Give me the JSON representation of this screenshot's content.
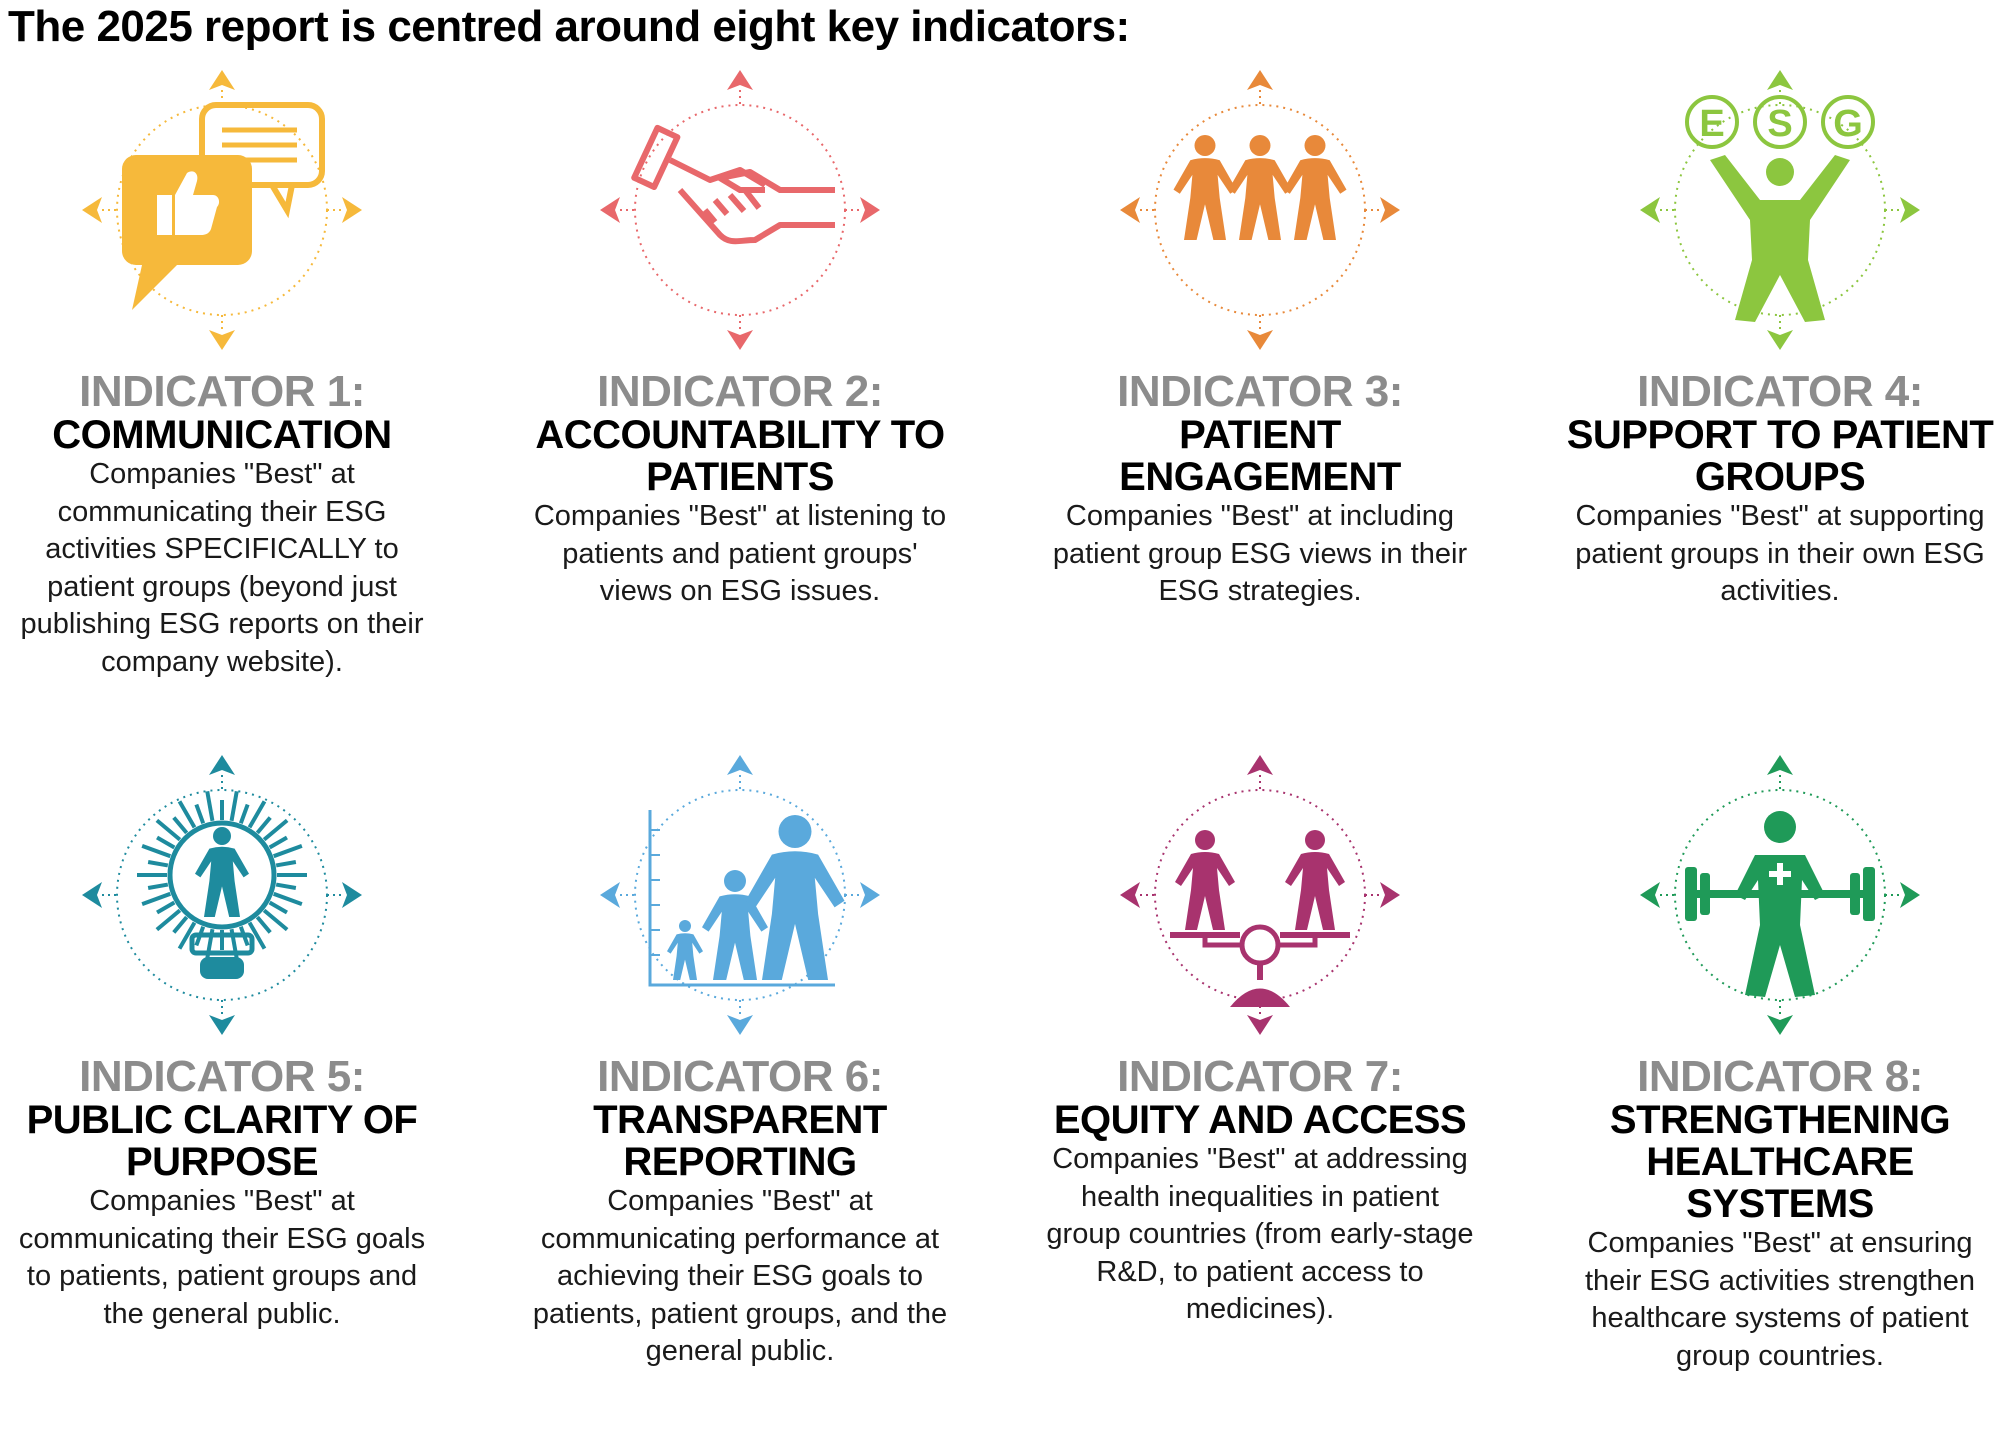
{
  "page": {
    "title": "The 2025 report is centred around eight key indicators:"
  },
  "indicators": [
    {
      "number": "INDICATOR 1:",
      "title": "COMMUNICATION",
      "description": "Companies \"Best\" at communicating their ESG activities SPECIFICALLY to patient groups (beyond just publishing ESG reports on their company website).",
      "color": "#f6b93b",
      "icon": "speech-bubbles-thumbs-up-icon"
    },
    {
      "number": "INDICATOR 2:",
      "title": "ACCOUNTABILITY TO PATIENTS",
      "description": "Companies \"Best\" at listening to patients and patient groups' views on ESG issues.",
      "color": "#e8686b",
      "icon": "handshake-icon"
    },
    {
      "number": "INDICATOR 3:",
      "title": "PATIENT ENGAGEMENT",
      "description": "Companies \"Best\" at including patient group ESG views in their ESG strategies.",
      "color": "#e8893a",
      "icon": "three-people-holding-hands-icon"
    },
    {
      "number": "INDICATOR 4:",
      "title": "SUPPORT TO PATIENT GROUPS",
      "description": "Companies \"Best\" at supporting patient groups in their own ESG activities.",
      "color": "#8cc63f",
      "icon": "person-juggling-esg-icon",
      "esg_letters": [
        "E",
        "S",
        "G"
      ]
    },
    {
      "number": "INDICATOR 5:",
      "title": "PUBLIC CLARITY OF PURPOSE",
      "description": "Companies \"Best\" at communicating their ESG goals to patients, patient groups and the general public.",
      "color": "#1e8b9e",
      "icon": "person-in-lightbulb-icon"
    },
    {
      "number": "INDICATOR 6:",
      "title": "TRANSPARENT REPORTING",
      "description": "Companies \"Best\" at communicating performance at achieving their ESG goals to patients, patient groups, and the general public.",
      "color": "#5aa9dc",
      "icon": "growing-people-chart-icon"
    },
    {
      "number": "INDICATOR 7:",
      "title": "EQUITY AND ACCESS",
      "description": "Companies \"Best\" at addressing health inequalities in patient group countries (from early-stage R&D, to patient access to medicines).",
      "color": "#a8336e",
      "icon": "balance-scale-people-icon"
    },
    {
      "number": "INDICATOR 8:",
      "title": "STRENGTHENING HEALTHCARE SYSTEMS",
      "description": "Companies \"Best\" at ensuring their ESG activities strengthen healthcare systems of patient group countries.",
      "color": "#1f9a58",
      "icon": "person-lifting-barbell-icon"
    }
  ]
}
